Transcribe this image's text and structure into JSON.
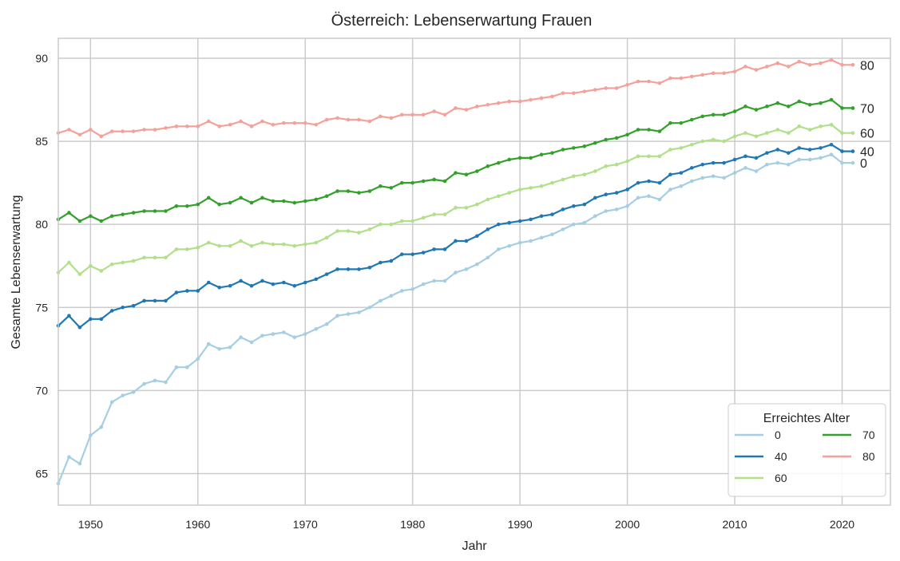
{
  "chart_data": {
    "type": "line",
    "title": "Österreich: Lebenserwartung Frauen",
    "xlabel": "Jahr",
    "ylabel": "Gesamte Lebenserwartung",
    "xlim": [
      1947,
      2024.5
    ],
    "ylim": [
      63.1,
      91.2
    ],
    "xticks": [
      1950,
      1960,
      1970,
      1980,
      1990,
      2000,
      2010,
      2020
    ],
    "yticks": [
      65,
      70,
      75,
      80,
      85,
      90
    ],
    "grid": true,
    "legend": {
      "title": "Erreichtes Alter",
      "placement": "bottom-right",
      "columns": 2
    },
    "x_start": 1947,
    "x_end": 2021,
    "series": [
      {
        "name": "0",
        "end_label": "0",
        "color": "#a6cee3",
        "values": [
          64.4,
          66.0,
          65.6,
          67.3,
          67.8,
          69.3,
          69.7,
          69.9,
          70.4,
          70.6,
          70.5,
          71.4,
          71.4,
          71.9,
          72.8,
          72.5,
          72.6,
          73.2,
          72.9,
          73.3,
          73.4,
          73.5,
          73.2,
          73.4,
          73.7,
          74.0,
          74.5,
          74.6,
          74.7,
          75.0,
          75.4,
          75.7,
          76.0,
          76.1,
          76.4,
          76.6,
          76.6,
          77.1,
          77.3,
          77.6,
          78.0,
          78.5,
          78.7,
          78.9,
          79.0,
          79.2,
          79.4,
          79.7,
          80.0,
          80.1,
          80.5,
          80.8,
          80.9,
          81.1,
          81.6,
          81.7,
          81.5,
          82.1,
          82.3,
          82.6,
          82.8,
          82.9,
          82.8,
          83.1,
          83.4,
          83.2,
          83.6,
          83.7,
          83.6,
          83.9,
          83.9,
          84.0,
          84.2,
          83.7,
          83.7
        ]
      },
      {
        "name": "40",
        "end_label": "40",
        "color": "#1f78b4",
        "values": [
          73.9,
          74.5,
          73.8,
          74.3,
          74.3,
          74.8,
          75.0,
          75.1,
          75.4,
          75.4,
          75.4,
          75.9,
          76.0,
          76.0,
          76.5,
          76.2,
          76.3,
          76.6,
          76.3,
          76.6,
          76.4,
          76.5,
          76.3,
          76.5,
          76.7,
          77.0,
          77.3,
          77.3,
          77.3,
          77.4,
          77.7,
          77.8,
          78.2,
          78.2,
          78.3,
          78.5,
          78.5,
          79.0,
          79.0,
          79.3,
          79.7,
          80.0,
          80.1,
          80.2,
          80.3,
          80.5,
          80.6,
          80.9,
          81.1,
          81.2,
          81.6,
          81.8,
          81.9,
          82.1,
          82.5,
          82.6,
          82.5,
          83.0,
          83.1,
          83.4,
          83.6,
          83.7,
          83.7,
          83.9,
          84.1,
          84.0,
          84.3,
          84.5,
          84.3,
          84.6,
          84.5,
          84.6,
          84.8,
          84.4,
          84.4
        ]
      },
      {
        "name": "60",
        "end_label": "60",
        "color": "#b2df8a",
        "values": [
          77.1,
          77.7,
          77.0,
          77.5,
          77.2,
          77.6,
          77.7,
          77.8,
          78.0,
          78.0,
          78.0,
          78.5,
          78.5,
          78.6,
          78.9,
          78.7,
          78.7,
          79.0,
          78.7,
          78.9,
          78.8,
          78.8,
          78.7,
          78.8,
          78.9,
          79.2,
          79.6,
          79.6,
          79.5,
          79.7,
          80.0,
          80.0,
          80.2,
          80.2,
          80.4,
          80.6,
          80.6,
          81.0,
          81.0,
          81.2,
          81.5,
          81.7,
          81.9,
          82.1,
          82.2,
          82.3,
          82.5,
          82.7,
          82.9,
          83.0,
          83.2,
          83.5,
          83.6,
          83.8,
          84.1,
          84.1,
          84.1,
          84.5,
          84.6,
          84.8,
          85.0,
          85.1,
          85.0,
          85.3,
          85.5,
          85.3,
          85.5,
          85.7,
          85.5,
          85.9,
          85.7,
          85.9,
          86.0,
          85.5,
          85.5
        ]
      },
      {
        "name": "70",
        "end_label": "70",
        "color": "#33a02c",
        "values": [
          80.3,
          80.7,
          80.2,
          80.5,
          80.2,
          80.5,
          80.6,
          80.7,
          80.8,
          80.8,
          80.8,
          81.1,
          81.1,
          81.2,
          81.6,
          81.2,
          81.3,
          81.6,
          81.3,
          81.6,
          81.4,
          81.4,
          81.3,
          81.4,
          81.5,
          81.7,
          82.0,
          82.0,
          81.9,
          82.0,
          82.3,
          82.2,
          82.5,
          82.5,
          82.6,
          82.7,
          82.6,
          83.1,
          83.0,
          83.2,
          83.5,
          83.7,
          83.9,
          84.0,
          84.0,
          84.2,
          84.3,
          84.5,
          84.6,
          84.7,
          84.9,
          85.1,
          85.2,
          85.4,
          85.7,
          85.7,
          85.6,
          86.1,
          86.1,
          86.3,
          86.5,
          86.6,
          86.6,
          86.8,
          87.1,
          86.9,
          87.1,
          87.3,
          87.1,
          87.4,
          87.2,
          87.3,
          87.5,
          87.0,
          87.0
        ]
      },
      {
        "name": "80",
        "end_label": "80",
        "color": "#f4a19a",
        "values": [
          85.5,
          85.7,
          85.4,
          85.7,
          85.3,
          85.6,
          85.6,
          85.6,
          85.7,
          85.7,
          85.8,
          85.9,
          85.9,
          85.9,
          86.2,
          85.9,
          86.0,
          86.2,
          85.9,
          86.2,
          86.0,
          86.1,
          86.1,
          86.1,
          86.0,
          86.3,
          86.4,
          86.3,
          86.3,
          86.2,
          86.5,
          86.4,
          86.6,
          86.6,
          86.6,
          86.8,
          86.6,
          87.0,
          86.9,
          87.1,
          87.2,
          87.3,
          87.4,
          87.4,
          87.5,
          87.6,
          87.7,
          87.9,
          87.9,
          88.0,
          88.1,
          88.2,
          88.2,
          88.4,
          88.6,
          88.6,
          88.5,
          88.8,
          88.8,
          88.9,
          89.0,
          89.1,
          89.1,
          89.2,
          89.5,
          89.3,
          89.5,
          89.7,
          89.5,
          89.8,
          89.6,
          89.7,
          89.9,
          89.6,
          89.6
        ]
      }
    ]
  }
}
